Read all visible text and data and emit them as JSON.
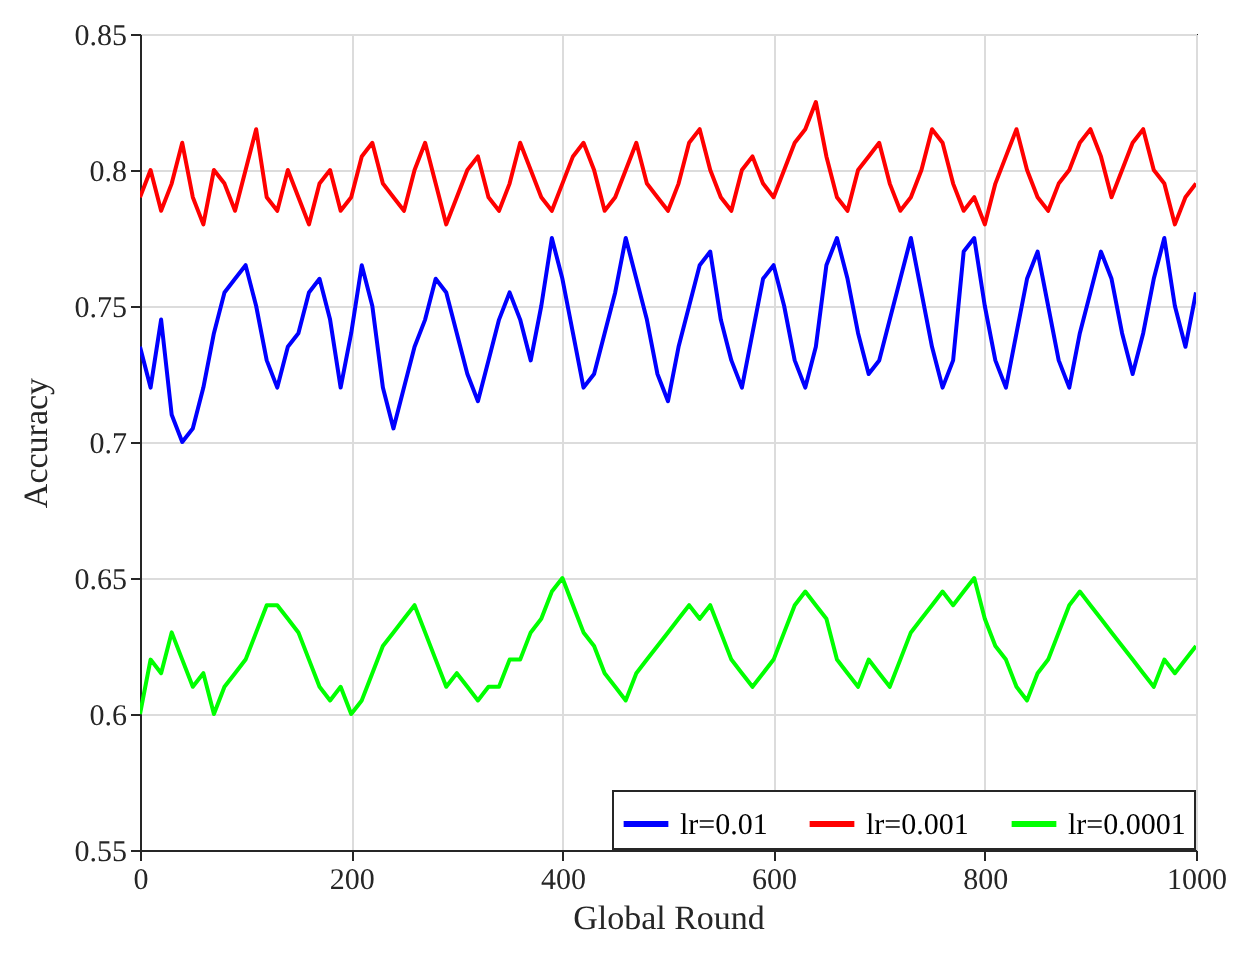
{
  "chart_data": {
    "type": "line",
    "xlabel": "Global Round",
    "ylabel": "Accuracy",
    "x": [
      0,
      10,
      20,
      30,
      40,
      50,
      60,
      70,
      80,
      90,
      100,
      110,
      120,
      130,
      140,
      150,
      160,
      170,
      180,
      190,
      200,
      210,
      220,
      230,
      240,
      250,
      260,
      270,
      280,
      290,
      300,
      310,
      320,
      330,
      340,
      350,
      360,
      370,
      380,
      390,
      400,
      410,
      420,
      430,
      440,
      450,
      460,
      470,
      480,
      490,
      500,
      510,
      520,
      530,
      540,
      550,
      560,
      570,
      580,
      590,
      600,
      610,
      620,
      630,
      640,
      650,
      660,
      670,
      680,
      690,
      700,
      710,
      720,
      730,
      740,
      750,
      760,
      770,
      780,
      790,
      800,
      810,
      820,
      830,
      840,
      850,
      860,
      870,
      880,
      890,
      900,
      910,
      920,
      930,
      940,
      950,
      960,
      970,
      980,
      990,
      1000
    ],
    "series": [
      {
        "name": "lr=0.01",
        "color": "#0000ff",
        "values": [
          0.735,
          0.72,
          0.745,
          0.71,
          0.7,
          0.705,
          0.72,
          0.74,
          0.755,
          0.76,
          0.765,
          0.75,
          0.73,
          0.72,
          0.735,
          0.74,
          0.755,
          0.76,
          0.745,
          0.72,
          0.74,
          0.765,
          0.75,
          0.72,
          0.705,
          0.72,
          0.735,
          0.745,
          0.76,
          0.755,
          0.74,
          0.725,
          0.715,
          0.73,
          0.745,
          0.755,
          0.745,
          0.73,
          0.75,
          0.775,
          0.76,
          0.74,
          0.72,
          0.725,
          0.74,
          0.755,
          0.775,
          0.76,
          0.745,
          0.725,
          0.715,
          0.735,
          0.75,
          0.765,
          0.77,
          0.745,
          0.73,
          0.72,
          0.74,
          0.76,
          0.765,
          0.75,
          0.73,
          0.72,
          0.735,
          0.765,
          0.775,
          0.76,
          0.74,
          0.725,
          0.73,
          0.745,
          0.76,
          0.775,
          0.755,
          0.735,
          0.72,
          0.73,
          0.77,
          0.775,
          0.75,
          0.73,
          0.72,
          0.74,
          0.76,
          0.77,
          0.75,
          0.73,
          0.72,
          0.74,
          0.755,
          0.77,
          0.76,
          0.74,
          0.725,
          0.74,
          0.76,
          0.775,
          0.75,
          0.735,
          0.755
        ]
      },
      {
        "name": "lr=0.001",
        "color": "#ff0000",
        "values": [
          0.79,
          0.8,
          0.785,
          0.795,
          0.81,
          0.79,
          0.78,
          0.8,
          0.795,
          0.785,
          0.8,
          0.815,
          0.79,
          0.785,
          0.8,
          0.79,
          0.78,
          0.795,
          0.8,
          0.785,
          0.79,
          0.805,
          0.81,
          0.795,
          0.79,
          0.785,
          0.8,
          0.81,
          0.795,
          0.78,
          0.79,
          0.8,
          0.805,
          0.79,
          0.785,
          0.795,
          0.81,
          0.8,
          0.79,
          0.785,
          0.795,
          0.805,
          0.81,
          0.8,
          0.785,
          0.79,
          0.8,
          0.81,
          0.795,
          0.79,
          0.785,
          0.795,
          0.81,
          0.815,
          0.8,
          0.79,
          0.785,
          0.8,
          0.805,
          0.795,
          0.79,
          0.8,
          0.81,
          0.815,
          0.825,
          0.805,
          0.79,
          0.785,
          0.8,
          0.805,
          0.81,
          0.795,
          0.785,
          0.79,
          0.8,
          0.815,
          0.81,
          0.795,
          0.785,
          0.79,
          0.78,
          0.795,
          0.805,
          0.815,
          0.8,
          0.79,
          0.785,
          0.795,
          0.8,
          0.81,
          0.815,
          0.805,
          0.79,
          0.8,
          0.81,
          0.815,
          0.8,
          0.795,
          0.78,
          0.79,
          0.795
        ]
      },
      {
        "name": "lr=0.0001",
        "color": "#00ff00",
        "values": [
          0.6,
          0.62,
          0.615,
          0.63,
          0.62,
          0.61,
          0.615,
          0.6,
          0.61,
          0.615,
          0.62,
          0.63,
          0.64,
          0.64,
          0.635,
          0.63,
          0.62,
          0.61,
          0.605,
          0.61,
          0.6,
          0.605,
          0.615,
          0.625,
          0.63,
          0.635,
          0.64,
          0.63,
          0.62,
          0.61,
          0.615,
          0.61,
          0.605,
          0.61,
          0.61,
          0.62,
          0.62,
          0.63,
          0.635,
          0.645,
          0.65,
          0.64,
          0.63,
          0.625,
          0.615,
          0.61,
          0.605,
          0.615,
          0.62,
          0.625,
          0.63,
          0.635,
          0.64,
          0.635,
          0.64,
          0.63,
          0.62,
          0.615,
          0.61,
          0.615,
          0.62,
          0.63,
          0.64,
          0.645,
          0.64,
          0.635,
          0.62,
          0.615,
          0.61,
          0.62,
          0.615,
          0.61,
          0.62,
          0.63,
          0.635,
          0.64,
          0.645,
          0.64,
          0.645,
          0.65,
          0.635,
          0.625,
          0.62,
          0.61,
          0.605,
          0.615,
          0.62,
          0.63,
          0.64,
          0.645,
          0.64,
          0.635,
          0.63,
          0.625,
          0.62,
          0.615,
          0.61,
          0.62,
          0.615,
          0.62,
          0.625
        ]
      }
    ],
    "xlim": [
      0,
      1000
    ],
    "xticks": [
      0,
      200,
      400,
      600,
      800,
      1000
    ],
    "ylim": [
      0.55,
      0.85
    ],
    "yticks": [
      0.55,
      0.6,
      0.65,
      0.7,
      0.75,
      0.8,
      0.85
    ],
    "grid": true,
    "legend": "bottom right",
    "marker": "none",
    "line_style": "solid"
  }
}
